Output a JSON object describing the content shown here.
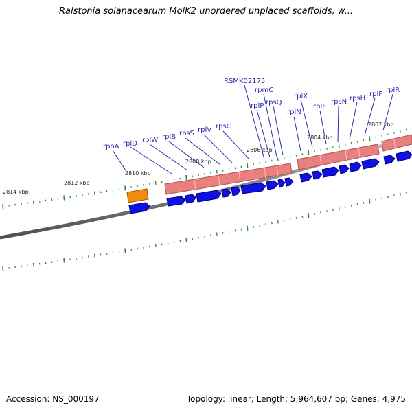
{
  "title": "Ralstonia solanacearum MolK2 unordered unplaced scaffolds, w...",
  "footer": {
    "accession": "Accession: NS_000197",
    "summary": "Topology: linear; Length: 5,964,607 bp; Genes: 4,975"
  },
  "colors": {
    "backbone": "#808080",
    "tick": "#2e8b2e",
    "gene": "#1010e0",
    "cds_rrna_band": "#e98080",
    "highlight": "#f08a10",
    "label": "#2a2ab0"
  },
  "ruler_labels": [
    "2814 kbp",
    "2812 kbp",
    "2810 kbp",
    "2808 kbp",
    "2806 kbp",
    "2804 kbp",
    "2802 kbp"
  ],
  "gene_labels": [
    "rpoA",
    "rplD",
    "rplW",
    "rplB",
    "rpsS",
    "rplV",
    "rpsC",
    "RSMK02175",
    "rpmC",
    "rplP",
    "rpsQ",
    "rplN",
    "rplX",
    "rplE",
    "rpsN",
    "rpsH",
    "rplF",
    "rplR"
  ]
}
